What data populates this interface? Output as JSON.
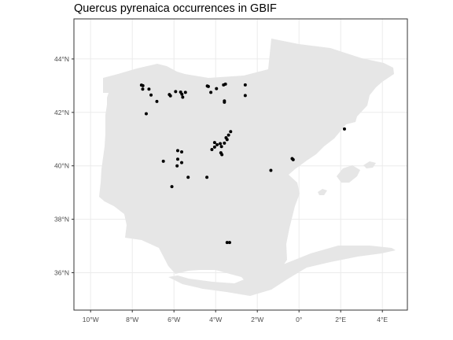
{
  "title": "Quercus pyrenaica occurrences in GBIF",
  "colors": {
    "panel_background": "#ffffff",
    "panel_border": "#333333",
    "grid": "#ebebeb",
    "land": "#e6e6e6",
    "points": "#000000",
    "tick_text": "#4d4d4d"
  },
  "chart_data": {
    "type": "scatter",
    "title": "Quercus pyrenaica occurrences in GBIF",
    "xlabel": "",
    "ylabel": "",
    "xlim": [
      -10.8,
      5.2
    ],
    "ylim": [
      34.6,
      45.5
    ],
    "grid": true,
    "x_ticks": [
      {
        "value": -10,
        "label": "10°W"
      },
      {
        "value": -8,
        "label": "8°W"
      },
      {
        "value": -6,
        "label": "6°W"
      },
      {
        "value": -4,
        "label": "4°W"
      },
      {
        "value": -2,
        "label": "2°W"
      },
      {
        "value": 0,
        "label": "0°"
      },
      {
        "value": 2,
        "label": "2°E"
      },
      {
        "value": 4,
        "label": "4°E"
      }
    ],
    "y_ticks": [
      {
        "value": 36,
        "label": "36°N"
      },
      {
        "value": 38,
        "label": "38°N"
      },
      {
        "value": 40,
        "label": "40°N"
      },
      {
        "value": 42,
        "label": "42°N"
      },
      {
        "value": 44,
        "label": "44°N"
      }
    ],
    "points": [
      {
        "lon": -7.56,
        "lat": 43.02
      },
      {
        "lon": -7.49,
        "lat": 43.0
      },
      {
        "lon": -7.5,
        "lat": 42.87
      },
      {
        "lon": -7.2,
        "lat": 42.87
      },
      {
        "lon": -7.1,
        "lat": 42.65
      },
      {
        "lon": -6.82,
        "lat": 42.41
      },
      {
        "lon": -6.22,
        "lat": 42.67
      },
      {
        "lon": -6.17,
        "lat": 42.62
      },
      {
        "lon": -5.92,
        "lat": 42.78
      },
      {
        "lon": -5.68,
        "lat": 42.76
      },
      {
        "lon": -5.62,
        "lat": 42.68
      },
      {
        "lon": -5.58,
        "lat": 42.57
      },
      {
        "lon": -5.45,
        "lat": 42.75
      },
      {
        "lon": -4.4,
        "lat": 42.99
      },
      {
        "lon": -4.35,
        "lat": 42.97
      },
      {
        "lon": -4.23,
        "lat": 42.75
      },
      {
        "lon": -3.96,
        "lat": 42.89
      },
      {
        "lon": -3.62,
        "lat": 43.03
      },
      {
        "lon": -3.53,
        "lat": 43.06
      },
      {
        "lon": -3.58,
        "lat": 42.43
      },
      {
        "lon": -3.58,
        "lat": 42.38
      },
      {
        "lon": -2.58,
        "lat": 43.03
      },
      {
        "lon": -2.58,
        "lat": 42.63
      },
      {
        "lon": -7.33,
        "lat": 41.95
      },
      {
        "lon": -5.82,
        "lat": 40.57
      },
      {
        "lon": -5.63,
        "lat": 40.52
      },
      {
        "lon": -6.51,
        "lat": 40.17
      },
      {
        "lon": -5.82,
        "lat": 40.25
      },
      {
        "lon": -5.63,
        "lat": 40.12
      },
      {
        "lon": -5.85,
        "lat": 40.0
      },
      {
        "lon": -5.32,
        "lat": 39.57
      },
      {
        "lon": -4.42,
        "lat": 39.57
      },
      {
        "lon": -6.1,
        "lat": 39.22
      },
      {
        "lon": -4.18,
        "lat": 40.61
      },
      {
        "lon": -4.05,
        "lat": 40.7
      },
      {
        "lon": -4.05,
        "lat": 40.87
      },
      {
        "lon": -3.93,
        "lat": 40.79
      },
      {
        "lon": -3.78,
        "lat": 40.83
      },
      {
        "lon": -3.72,
        "lat": 40.72
      },
      {
        "lon": -3.58,
        "lat": 40.85
      },
      {
        "lon": -3.5,
        "lat": 41.05
      },
      {
        "lon": -3.38,
        "lat": 41.15
      },
      {
        "lon": -3.28,
        "lat": 41.28
      },
      {
        "lon": -3.45,
        "lat": 40.98
      },
      {
        "lon": -3.75,
        "lat": 40.49
      },
      {
        "lon": -3.7,
        "lat": 40.42
      },
      {
        "lon": -3.45,
        "lat": 37.13
      },
      {
        "lon": -3.33,
        "lat": 37.13
      },
      {
        "lon": -1.35,
        "lat": 39.83
      },
      {
        "lon": -0.33,
        "lat": 40.27
      },
      {
        "lon": -0.28,
        "lat": 40.23
      },
      {
        "lon": 2.18,
        "lat": 41.38
      }
    ]
  }
}
